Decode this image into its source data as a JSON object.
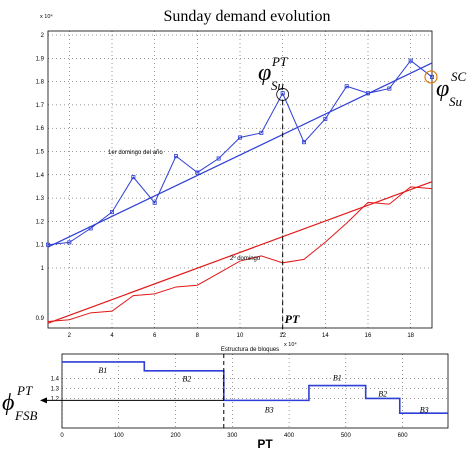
{
  "chart_data": [
    {
      "type": "line",
      "title": "Sunday demand evolution",
      "y_multiplier_label": "x 10⁴",
      "xlim": [
        1,
        19
      ],
      "ylim": [
        1.0,
        2.0
      ],
      "x_ticks": [
        "2",
        "4",
        "6",
        "8",
        "10",
        "12",
        "14",
        "16",
        "18"
      ],
      "x_tick_values": [
        2,
        4,
        6,
        8,
        10,
        12,
        14,
        16,
        18
      ],
      "y_ticks": [
        "1.9",
        "1.8",
        "1.7",
        "1.6",
        "1.5",
        "1.4",
        "1.3",
        "1.2",
        "1.1",
        "1",
        "2"
      ],
      "y_tick_values": [
        1.9,
        1.8,
        1.7,
        1.6,
        1.5,
        1.4,
        1.3,
        1.2,
        1.1,
        1.0,
        2.0
      ],
      "grid": true,
      "series": [
        {
          "name": "1er domingo del año",
          "color": "#2f3fd6",
          "marker": "square",
          "x": [
            1,
            2,
            3,
            4,
            5,
            6,
            7,
            8,
            9,
            10,
            11,
            12,
            13,
            14,
            15,
            16,
            17,
            18,
            19
          ],
          "y": [
            1.1,
            1.11,
            1.17,
            1.24,
            1.39,
            1.28,
            1.48,
            1.41,
            1.47,
            1.56,
            1.58,
            1.75,
            1.54,
            1.64,
            1.78,
            1.75,
            1.77,
            1.89,
            1.82
          ],
          "trend": {
            "x": [
              1,
              19
            ],
            "y": [
              1.09,
              1.88
            ]
          }
        }
      ],
      "annotations": {
        "phi_pt": {
          "symbol": "φ",
          "sub": "Su",
          "sup": "PT",
          "x": 12,
          "y": 1.745
        },
        "phi_sc": {
          "symbol": "φ",
          "sub": "Su",
          "sup": "SC",
          "x": 19,
          "y": 1.82
        },
        "pt_line": {
          "label": "PT",
          "x": 12
        }
      }
    },
    {
      "type": "line",
      "y_multiplier_label": "x 10⁴",
      "xlim": [
        1,
        19
      ],
      "ylim": [
        0.9,
        1.7
      ],
      "y_ticks": [
        "0.9"
      ],
      "y_tick_values": [
        0.9
      ],
      "series": [
        {
          "name": "2º domingo",
          "color": "#e21818",
          "marker": "none",
          "x": [
            1,
            2,
            3,
            4,
            5,
            6,
            7,
            8,
            9,
            10,
            11,
            12,
            13,
            14,
            15,
            16,
            17,
            18,
            19
          ],
          "y": [
            0.88,
            0.89,
            0.93,
            0.94,
            1.03,
            1.04,
            1.08,
            1.09,
            1.16,
            1.23,
            1.26,
            1.22,
            1.24,
            1.34,
            1.45,
            1.57,
            1.56,
            1.66,
            1.65
          ],
          "trend": {
            "x": [
              1,
              19
            ],
            "y": [
              0.87,
              1.69
            ]
          }
        }
      ]
    },
    {
      "type": "line",
      "title": "Estructura de bloques",
      "xlabel": "PT",
      "xlim": [
        0,
        680
      ],
      "ylim": [
        0.9,
        1.65
      ],
      "x_ticks": [
        "0",
        "100",
        "200",
        "300",
        "400",
        "500",
        "600"
      ],
      "x_tick_values": [
        0,
        100,
        200,
        300,
        400,
        500,
        600
      ],
      "y_ticks": [
        "1.4",
        "1.3",
        "1.2"
      ],
      "y_tick_values": [
        1.4,
        1.3,
        1.2
      ],
      "grid": true,
      "series": [
        {
          "name": "Estructura de bloques",
          "color": "#2f3fd6",
          "step_x": [
            0,
            145,
            145,
            285,
            285,
            435,
            435,
            535,
            535,
            595,
            595,
            680
          ],
          "step_y": [
            1.57,
            1.57,
            1.48,
            1.48,
            1.18,
            1.18,
            1.33,
            1.33,
            1.2,
            1.2,
            1.05,
            1.05
          ]
        }
      ],
      "block_labels": [
        {
          "label": "B1",
          "x": 72,
          "y": 1.49
        },
        {
          "label": "B2",
          "x": 220,
          "y": 1.4
        },
        {
          "label": "B3",
          "x": 365,
          "y": 1.09
        },
        {
          "label": "B1",
          "x": 485,
          "y": 1.41
        },
        {
          "label": "B2",
          "x": 565,
          "y": 1.25
        },
        {
          "label": "B3",
          "x": 638,
          "y": 1.09
        }
      ],
      "annotations": {
        "phi_fsb": {
          "symbol": "ϕ",
          "sub": "FSB",
          "sup": "PT",
          "y": 1.18
        },
        "pt_line": {
          "label": "PT",
          "x": 285
        }
      }
    }
  ]
}
